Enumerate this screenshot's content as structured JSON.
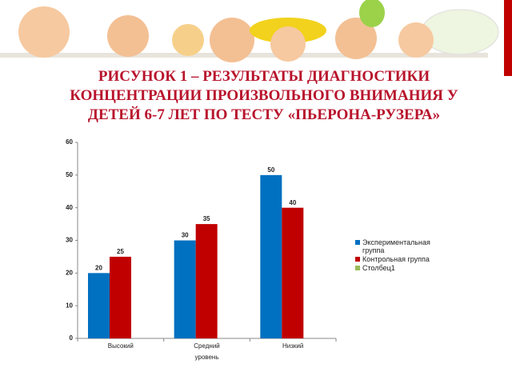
{
  "chart_data": {
    "type": "bar",
    "title": "РИСУНОК 1 – РЕЗУЛЬТАТЫ ДИАГНОСТИКИ КОНЦЕНТРАЦИИ ПРОИЗВОЛЬНОГО ВНИМАНИЯ У ДЕТЕЙ 6-7 ЛЕТ ПО ТЕСТУ «ПЬЕРОНА-РУЗЕРА»",
    "x_label": "уровень",
    "categories": [
      "Высокий",
      "Средний",
      "Низкий"
    ],
    "series": [
      {
        "name": "Экспериментальная группа",
        "color": "#0070c0",
        "values": [
          20,
          30,
          50
        ]
      },
      {
        "name": "Контрольная группа",
        "color": "#c00000",
        "values": [
          25,
          35,
          40
        ]
      },
      {
        "name": "Столбец1",
        "color": "#9bbb59",
        "values": [
          null,
          null,
          null
        ]
      }
    ],
    "ylim": [
      0,
      60
    ],
    "yticks": [
      0,
      10,
      20,
      30,
      40,
      50,
      60
    ],
    "grid": false,
    "legend": "right"
  }
}
